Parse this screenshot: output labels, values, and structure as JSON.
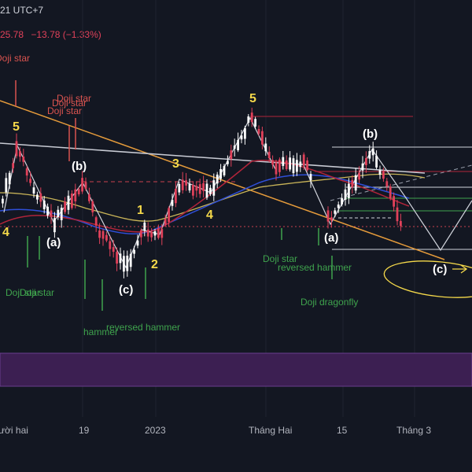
{
  "header": {
    "timezone": "21 UTC+7",
    "price_fragment": "25.78",
    "change": "−13.78 (−1.33%)"
  },
  "colors": {
    "background": "#131722",
    "up_candle": "#ffffff",
    "down_candle": "#e0415a",
    "wave_label": "#f5d94a",
    "orange_line": "#e59b3b",
    "bollinger": "#c9b458",
    "ema_blue": "#2f4fd8",
    "ema_red": "#b0243a",
    "purple_band": "#3c1f52"
  },
  "chart_data": {
    "type": "candlestick",
    "x_axis_labels": [
      "ười hai",
      "19",
      "2023",
      "Tháng Hai",
      "15",
      "Tháng 3"
    ],
    "wave_labels": [
      "4",
      "5",
      "(b)",
      "(a)",
      "(c)",
      "1",
      "2",
      "3",
      "4",
      "5",
      "(a)",
      "(b)",
      "(c)"
    ],
    "pattern_labels": [
      "Doji star",
      "Doji star",
      "Doji star",
      "Doji star",
      "Doji star",
      "Doji star",
      "Doji star",
      "reversed hammer",
      "hammer",
      "reversed hammer",
      "Doji dragonfly"
    ]
  }
}
